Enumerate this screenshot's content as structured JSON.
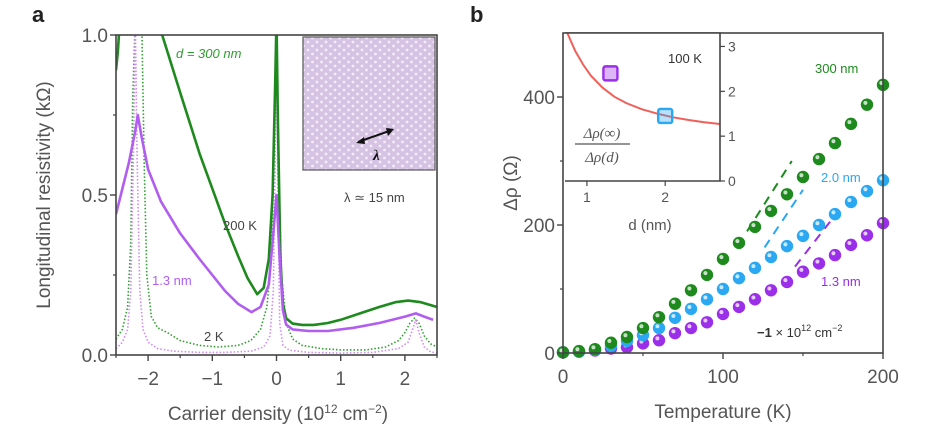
{
  "chart_data": [
    {
      "panel": "a",
      "type": "line",
      "title": "",
      "xlabel": "Carrier density (10^12 cm^-2)",
      "xlabel_parts": {
        "main": "Carrier density (10",
        "sup1": "12",
        "mid": " cm",
        "sup2": "−2",
        "end": ")"
      },
      "ylabel": "Longitudinal resistivity  (kΩ)",
      "xlim": [
        -2.5,
        2.5
      ],
      "ylim": [
        0.0,
        1.0
      ],
      "xticks": [
        -2,
        -1,
        0,
        1,
        2
      ],
      "xtick_labels": [
        "−2",
        "−1",
        "0",
        "1",
        "2"
      ],
      "yticks": [
        0.0,
        0.5,
        1.0
      ],
      "ytick_labels": [
        "0.0",
        "0.5",
        "1.0"
      ],
      "grid": false,
      "annotations": {
        "d300": "d = 300 nm",
        "t200": "200 K",
        "nm13": "1.3 nm",
        "t2": "2 K",
        "lambda": "λ ≃ 15 nm",
        "inset_arrow_label": "λ"
      },
      "series": [
        {
          "name": "300 nm, 200 K",
          "color": "#1e8a1e",
          "style": "solid",
          "x": [
            -2.5,
            -2.47,
            -2.44,
            -1.78,
            -1.5,
            -1.2,
            -1.0,
            -0.8,
            -0.6,
            -0.45,
            -0.3,
            -0.2,
            -0.12,
            -0.06,
            -0.02,
            0.0,
            0.02,
            0.06,
            0.1,
            0.15,
            0.25,
            0.4,
            0.58,
            0.8,
            1.0,
            1.3,
            1.6,
            1.85,
            2.05,
            2.25,
            2.5
          ],
          "y": [
            0.89,
            0.95,
            1.05,
            1.0,
            0.82,
            0.63,
            0.52,
            0.41,
            0.31,
            0.24,
            0.19,
            0.21,
            0.3,
            0.5,
            0.85,
            1.05,
            0.75,
            0.3,
            0.16,
            0.115,
            0.098,
            0.094,
            0.094,
            0.1,
            0.11,
            0.13,
            0.15,
            0.165,
            0.17,
            0.165,
            0.15
          ]
        },
        {
          "name": "1.3 nm, 200 K",
          "color": "#b15ef0",
          "style": "solid",
          "x": [
            -2.5,
            -2.4,
            -2.3,
            -2.2,
            -2.16,
            -2.1,
            -2.0,
            -1.8,
            -1.5,
            -1.2,
            -1.0,
            -0.8,
            -0.6,
            -0.39,
            -0.25,
            -0.12,
            -0.05,
            0.0,
            0.05,
            0.1,
            0.15,
            0.25,
            0.5,
            0.8,
            1.2,
            1.6,
            2.0,
            2.17,
            2.3,
            2.44
          ],
          "y": [
            0.44,
            0.52,
            0.6,
            0.7,
            0.75,
            0.68,
            0.58,
            0.48,
            0.38,
            0.3,
            0.25,
            0.2,
            0.16,
            0.134,
            0.15,
            0.22,
            0.38,
            0.5,
            0.3,
            0.14,
            0.095,
            0.08,
            0.075,
            0.075,
            0.085,
            0.1,
            0.12,
            0.13,
            0.12,
            0.11
          ]
        },
        {
          "name": "300 nm, 2 K",
          "color": "#2ea02e",
          "style": "dotted",
          "x": [
            -2.5,
            -2.4,
            -2.32,
            -2.27,
            -2.24,
            -2.2,
            -2.15,
            -2.1,
            -2.06,
            -2.02,
            -1.95,
            -1.85,
            -1.7,
            -1.5,
            -1.2,
            -0.9,
            -0.6,
            -0.4,
            -0.25,
            -0.15,
            -0.08,
            -0.03,
            0.0,
            0.03,
            0.08,
            0.15,
            0.25,
            0.4,
            0.7,
            1.0,
            1.4,
            1.7,
            1.9,
            2.0,
            2.08,
            2.15,
            2.22,
            2.3,
            2.4,
            2.5
          ],
          "y": [
            0.05,
            0.08,
            0.15,
            0.35,
            0.8,
            1.05,
            1.05,
            1.05,
            0.6,
            0.25,
            0.12,
            0.085,
            0.07,
            0.045,
            0.03,
            0.025,
            0.03,
            0.045,
            0.08,
            0.15,
            0.3,
            0.7,
            1.05,
            0.6,
            0.25,
            0.1,
            0.05,
            0.03,
            0.02,
            0.016,
            0.016,
            0.025,
            0.045,
            0.07,
            0.1,
            0.115,
            0.1,
            0.06,
            0.035,
            0.025
          ]
        },
        {
          "name": "1.3 nm, 2 K",
          "color": "#d18af5",
          "style": "dotted",
          "x": [
            -2.5,
            -2.4,
            -2.32,
            -2.27,
            -2.23,
            -2.2,
            -2.17,
            -2.13,
            -2.08,
            -2.0,
            -1.85,
            -1.6,
            -1.2,
            -0.8,
            -0.4,
            -0.2,
            -0.1,
            -0.05,
            -0.02,
            0.0,
            0.02,
            0.05,
            0.1,
            0.2,
            0.5,
            1.0,
            1.5,
            1.9,
            2.05,
            2.12,
            2.17,
            2.22,
            2.3,
            2.4,
            2.5
          ],
          "y": [
            0.02,
            0.04,
            0.08,
            0.2,
            0.6,
            1.05,
            0.6,
            0.2,
            0.08,
            0.04,
            0.02,
            0.012,
            0.008,
            0.008,
            0.012,
            0.025,
            0.06,
            0.2,
            0.6,
            1.05,
            0.5,
            0.1,
            0.03,
            0.015,
            0.008,
            0.006,
            0.008,
            0.02,
            0.04,
            0.08,
            0.11,
            0.07,
            0.025,
            0.01,
            0.006
          ]
        }
      ],
      "inset": {
        "type": "image",
        "description": "moire superlattice pattern",
        "fill": "#d9c6e6"
      }
    },
    {
      "panel": "b",
      "type": "scatter",
      "title": "",
      "xlabel": "Temperature (K)",
      "ylabel": "Δρ (Ω)",
      "xlim": [
        0,
        200
      ],
      "ylim": [
        0,
        500
      ],
      "xticks": [
        0,
        100,
        200
      ],
      "xtick_labels": [
        "0",
        "100",
        "200"
      ],
      "yticks": [
        0,
        200,
        400
      ],
      "ytick_labels": [
        "0",
        "200",
        "400"
      ],
      "grid": false,
      "annotations": {
        "density_bold": "−1",
        "density_rest": " × 10",
        "density_sup1": "12",
        "density_unit": " cm",
        "density_sup2": "−2"
      },
      "x": [
        0,
        10,
        20,
        30,
        40,
        50,
        60,
        70,
        80,
        90,
        100,
        110,
        120,
        130,
        140,
        150,
        160,
        170,
        180,
        190,
        200
      ],
      "series": [
        {
          "name": "300 nm",
          "color": "#1e8a1e",
          "values": [
            1,
            3,
            6,
            16,
            25,
            39,
            56,
            77,
            98,
            122,
            147,
            172,
            197,
            222,
            248,
            275,
            303,
            328,
            358,
            388,
            419
          ],
          "fit_dashed": {
            "x": [
              115,
              143
            ],
            "y": [
              190,
              300
            ]
          }
        },
        {
          "name": "2.0 nm",
          "color": "#2aa8f2",
          "values": [
            1,
            2,
            5,
            11,
            19,
            28,
            39,
            55,
            69,
            84,
            100,
            117,
            133,
            150,
            167,
            183,
            200,
            217,
            236,
            253,
            270
          ],
          "fit_dashed": {
            "x": [
              126,
              150
            ],
            "y": [
              165,
              255
            ]
          }
        },
        {
          "name": "1.3 nm",
          "color": "#9b2ee8",
          "values": [
            1,
            2,
            4,
            7,
            9,
            15,
            20,
            31,
            39,
            48,
            61,
            72,
            84,
            98,
            111,
            127,
            140,
            153,
            169,
            184,
            203
          ],
          "fit_dashed": {
            "x": [
              145,
              170
            ],
            "y": [
              135,
              215
            ]
          }
        }
      ],
      "inset": {
        "type": "scatter",
        "xlabel": "d (nm)",
        "ylabel_num": "Δρ(∞)",
        "ylabel_den": "Δρ(d)",
        "annotation": "100 K",
        "xlim": [
          0.72,
          2.7
        ],
        "ylim": [
          0,
          3.3
        ],
        "xticks": [
          1,
          2
        ],
        "xtick_labels": [
          "1",
          "2"
        ],
        "yticks": [
          0,
          1,
          2,
          3
        ],
        "ytick_labels": [
          "0",
          "1",
          "2",
          "3"
        ],
        "points": [
          {
            "name": "1.3 nm",
            "d": 1.3,
            "value": 2.4,
            "color": "#9b2ee8"
          },
          {
            "name": "2.0 nm",
            "d": 2.0,
            "value": 1.45,
            "color": "#2aa8f2"
          }
        ],
        "curve": {
          "color": "#f0605a",
          "d": [
            0.75,
            0.85,
            0.95,
            1.05,
            1.2,
            1.35,
            1.5,
            1.7,
            1.9,
            2.1,
            2.3,
            2.5,
            2.7
          ],
          "value": [
            3.3,
            2.9,
            2.6,
            2.35,
            2.08,
            1.88,
            1.74,
            1.6,
            1.5,
            1.42,
            1.36,
            1.31,
            1.27
          ]
        }
      }
    }
  ],
  "labels": {
    "panel_a": "a",
    "panel_b": "b"
  }
}
